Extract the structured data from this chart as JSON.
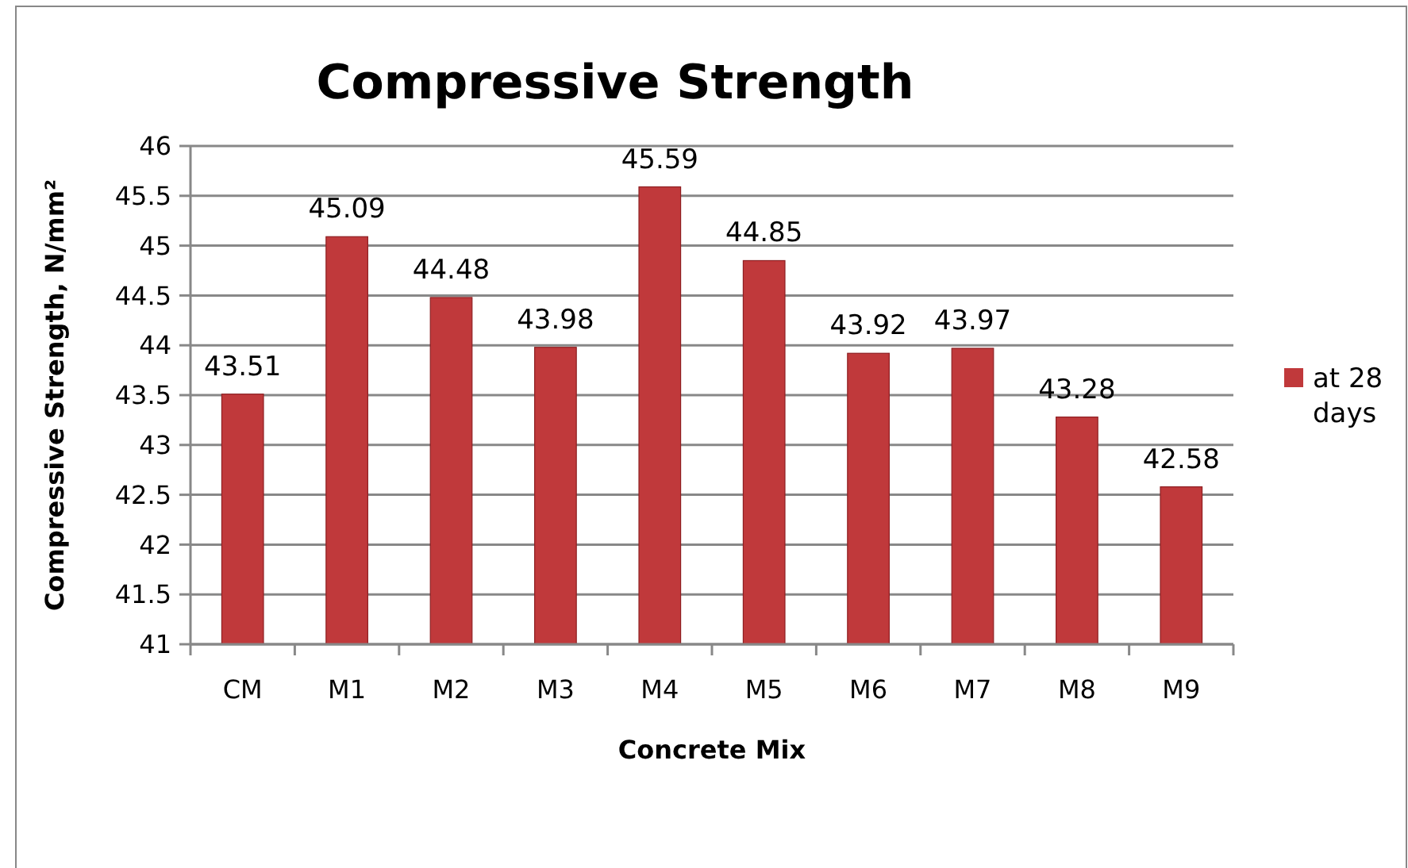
{
  "chart_data": {
    "type": "bar",
    "title": "Compressive Strength",
    "xlabel": "Concrete Mix",
    "ylabel": "Compressive Strength, N/mm²",
    "categories": [
      "CM",
      "M1",
      "M2",
      "M3",
      "M4",
      "M5",
      "M6",
      "M7",
      "M8",
      "M9"
    ],
    "series": [
      {
        "name": "at 28 days",
        "color": "#c0393b",
        "values": [
          43.51,
          45.09,
          44.48,
          43.98,
          45.59,
          44.85,
          43.92,
          43.97,
          43.28,
          42.58
        ]
      }
    ],
    "ylim": [
      41,
      46
    ],
    "yticks": [
      41,
      41.5,
      42,
      42.5,
      43,
      43.5,
      44,
      44.5,
      45,
      45.5,
      46
    ],
    "grid": "y",
    "legend": "right",
    "data_labels": true
  }
}
